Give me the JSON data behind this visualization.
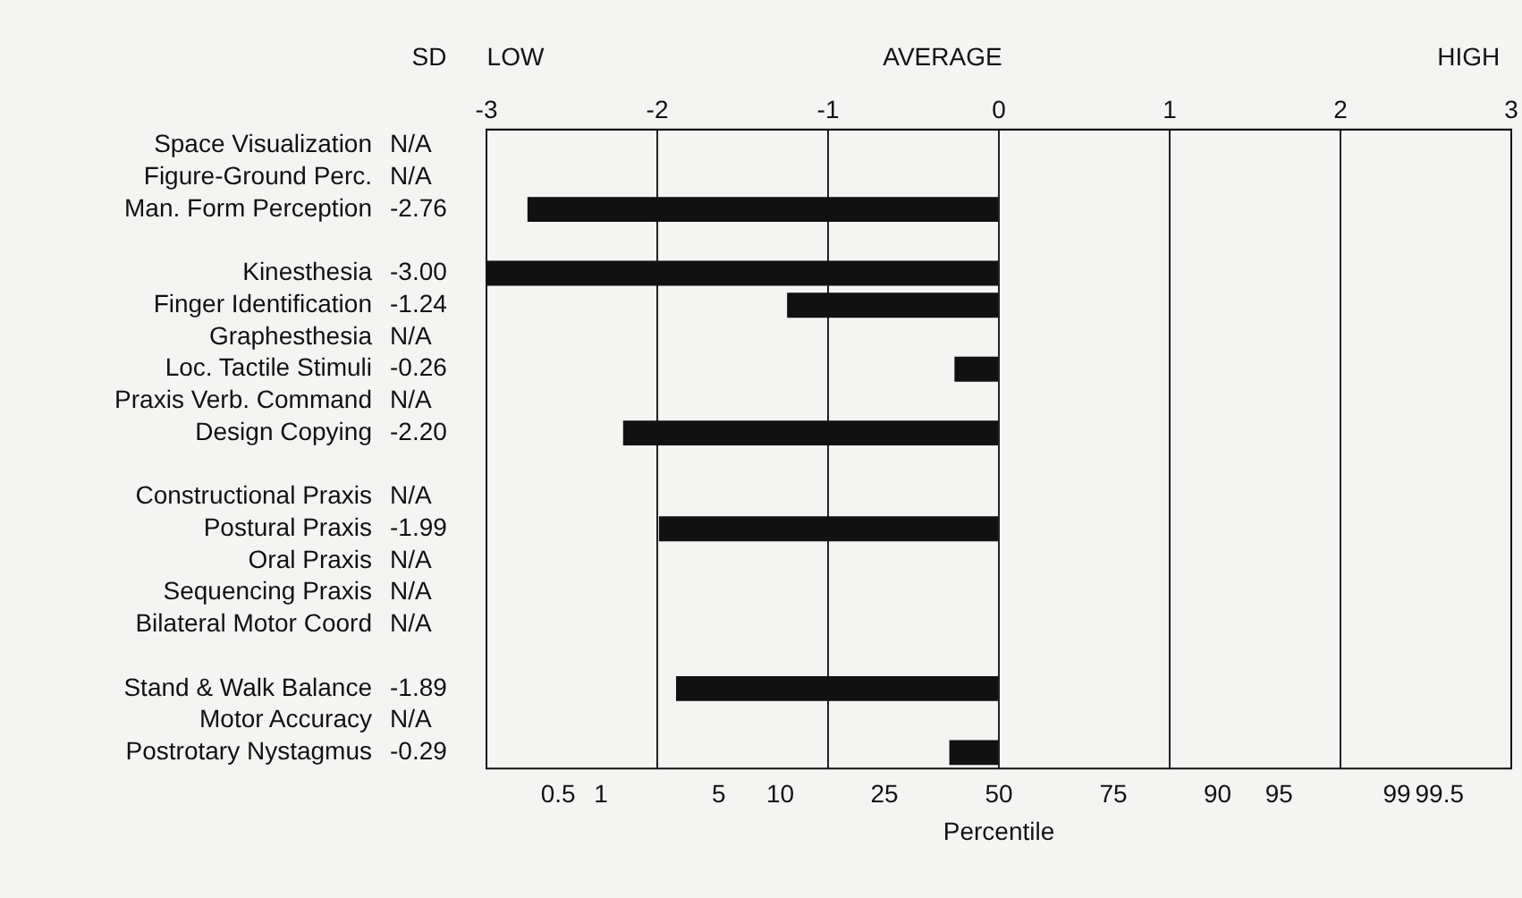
{
  "chart_data": {
    "type": "bar",
    "orientation": "horizontal",
    "categories": [
      "Space Visualization",
      "Figure-Ground Perc.",
      "Man. Form Perception",
      null,
      "Kinesthesia",
      "Finger Identification",
      "Graphesthesia",
      "Loc. Tactile Stimuli",
      "Praxis Verb. Command",
      "Design Copying",
      null,
      "Constructional Praxis",
      "Postural Praxis",
      "Oral Praxis",
      "Sequencing Praxis",
      "Bilateral Motor Coord",
      null,
      "Stand & Walk Balance",
      "Motor Accuracy",
      "Postrotary Nystagmus"
    ],
    "values": [
      null,
      null,
      -2.76,
      null,
      -3.0,
      -1.24,
      null,
      -0.26,
      null,
      -2.2,
      null,
      null,
      -1.99,
      null,
      null,
      null,
      null,
      -1.89,
      null,
      -0.29
    ],
    "value_labels": [
      "N/A",
      "N/A",
      "-2.76",
      null,
      "-3.00",
      "-1.24",
      "N/A",
      "-0.26",
      "N/A",
      "-2.20",
      null,
      "N/A",
      "-1.99",
      "N/A",
      "N/A",
      "N/A",
      null,
      "-1.89",
      "N/A",
      "-0.29"
    ],
    "color": "#111111",
    "xlim": [
      -3,
      3
    ],
    "xticks": [
      -3,
      -2,
      -1,
      0,
      1,
      2,
      3
    ],
    "grid": "x",
    "legend": false,
    "annotations": [
      "SD",
      "LOW",
      "AVERAGE",
      "HIGH",
      "Percentile",
      "0.5",
      "1",
      "5",
      "10",
      "25",
      "50",
      "75",
      "90",
      "95",
      "99",
      "99.5"
    ]
  }
}
